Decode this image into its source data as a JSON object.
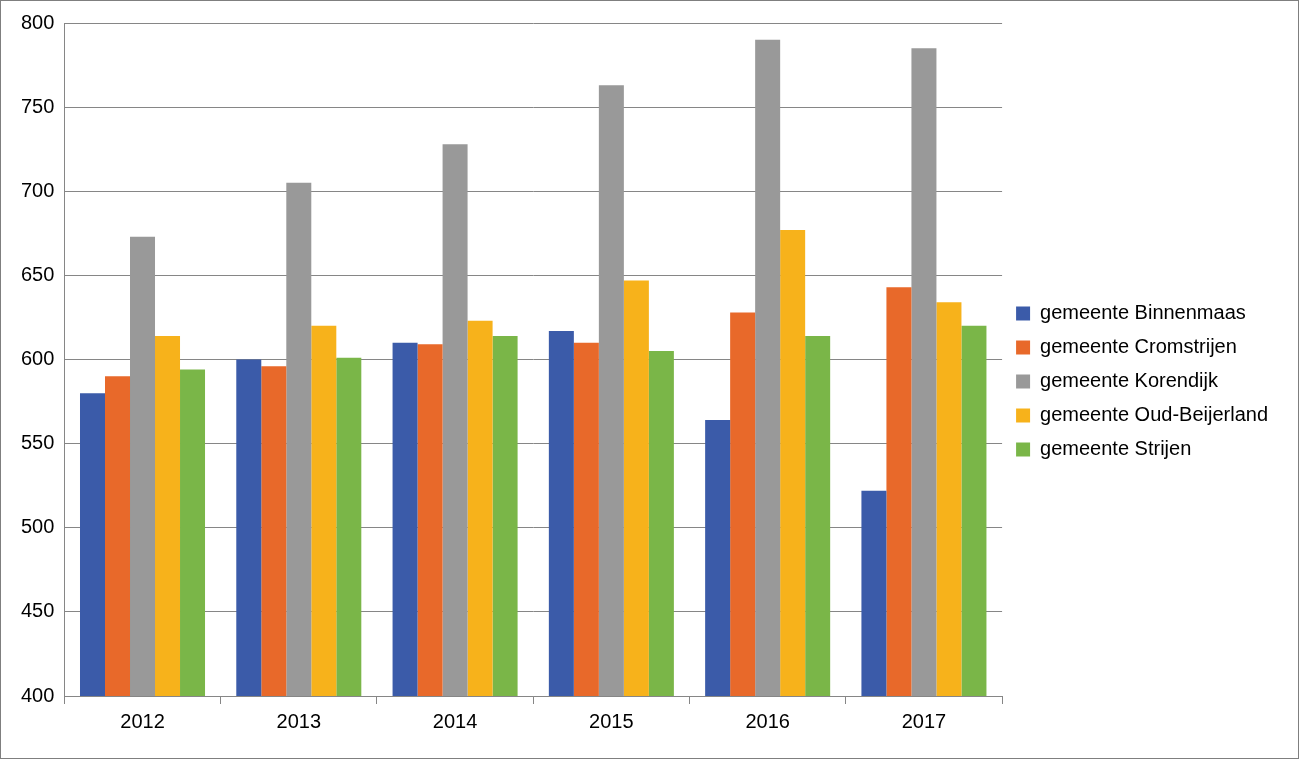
{
  "chart_data": {
    "type": "bar",
    "categories": [
      "2012",
      "2013",
      "2014",
      "2015",
      "2016",
      "2017"
    ],
    "series": [
      {
        "name": "gemeente Binnenmaas",
        "color": "#3b5ba9",
        "values": [
          580,
          600,
          610,
          617,
          564,
          522
        ]
      },
      {
        "name": "gemeente Cromstrijen",
        "color": "#e8692a",
        "values": [
          590,
          596,
          609,
          610,
          628,
          643
        ]
      },
      {
        "name": "gemeente Korendijk",
        "color": "#999999",
        "values": [
          673,
          705,
          728,
          763,
          790,
          785
        ]
      },
      {
        "name": "gemeente Oud-Beijerland",
        "color": "#f7b21b",
        "values": [
          614,
          620,
          623,
          647,
          677,
          634
        ]
      },
      {
        "name": "gemeente Strijen",
        "color": "#7ab648",
        "values": [
          594,
          601,
          614,
          605,
          614,
          620
        ]
      }
    ],
    "ylim": [
      400,
      800
    ],
    "yticks": [
      400,
      450,
      500,
      550,
      600,
      650,
      700,
      750,
      800
    ],
    "grid": true,
    "legend": "right"
  }
}
